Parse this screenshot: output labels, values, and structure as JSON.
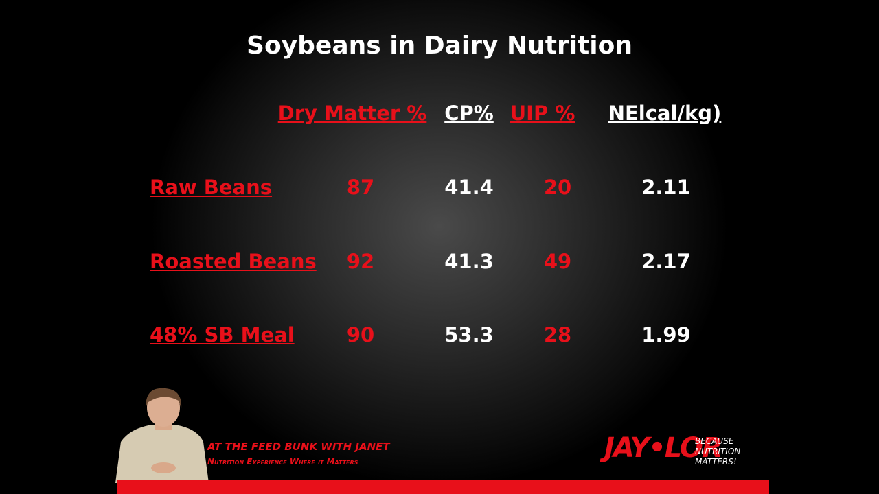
{
  "slide": {
    "title": "Soybeans in Dairy Nutrition",
    "table": {
      "headers": [
        "Dry Matter %",
        "CP%",
        "UIP %",
        "NElcal/kg)"
      ],
      "rows": [
        [
          "Raw Beans",
          "87",
          "41.4",
          "20",
          "2.11"
        ],
        [
          "Roasted Beans",
          "92",
          "41.3",
          "49",
          "2.17"
        ],
        [
          "48% SB Meal",
          "90",
          "53.3",
          "28",
          "1.99"
        ]
      ]
    },
    "footer": {
      "show_title": "AT THE FEED BUNK WITH JANET",
      "show_subtitle": "Nutrition Experience Where it Matters",
      "logo": "JAY•LOR",
      "tagline": [
        "BECAUSE",
        "NUTRITION",
        "MATTERS!"
      ]
    }
  }
}
